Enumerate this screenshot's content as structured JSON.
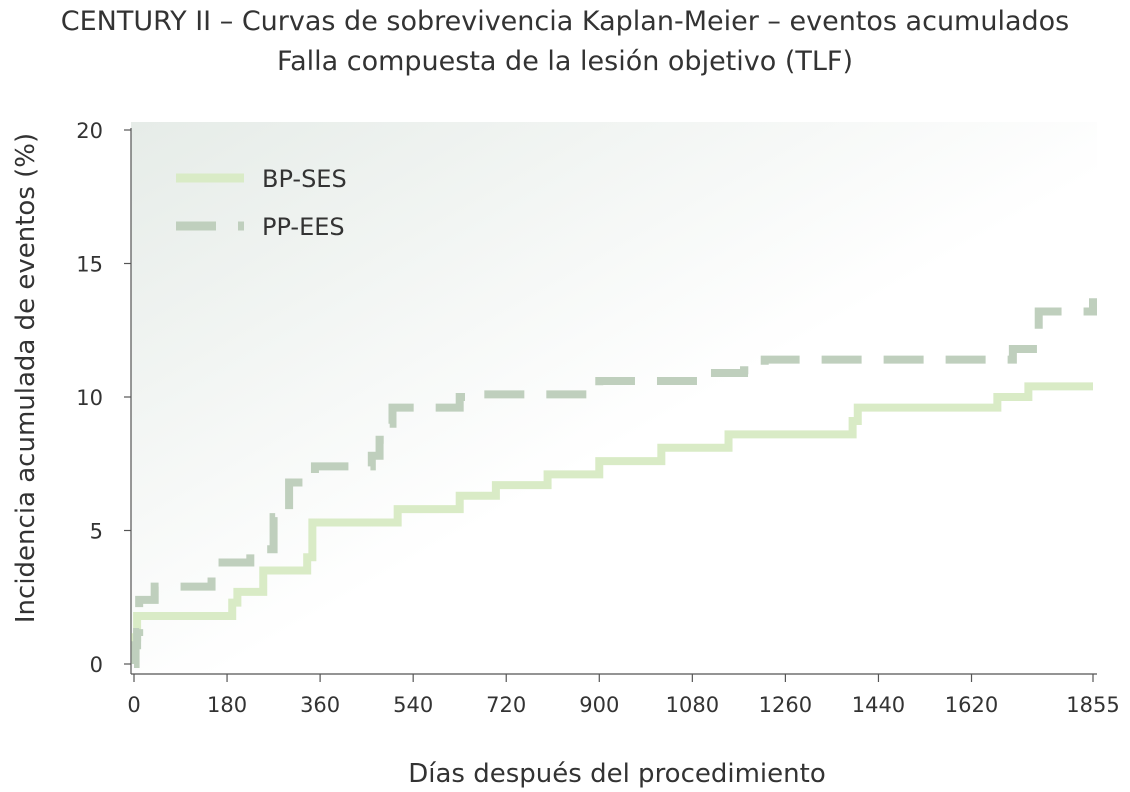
{
  "chart_data": {
    "type": "line",
    "title": "CENTURY II – Curvas de sobrevivencia Kaplan-Meier – eventos acumulados",
    "subtitle": "Falla compuesta de la lesión objetivo (TLF)",
    "xlabel": "Días después del procedimiento",
    "ylabel": "Incidencia acumulada de eventos (%)",
    "xlim": [
      0,
      1855
    ],
    "ylim": [
      0,
      20
    ],
    "xticks": [
      "0",
      "180",
      "360",
      "540",
      "720",
      "900",
      "1080",
      "1260",
      "1440",
      "1620",
      "1855"
    ],
    "yticks": [
      "0",
      "5",
      "10",
      "15",
      "20"
    ],
    "legend_position": "top-left",
    "grid": false,
    "series": [
      {
        "name": "BP-SES",
        "color": "#d9ebc6",
        "style": "solid",
        "x": [
          0,
          3,
          6,
          185,
          190,
          200,
          240,
          250,
          320,
          335,
          345,
          500,
          510,
          620,
          630,
          700,
          780,
          800,
          880,
          900,
          1010,
          1020,
          1130,
          1150,
          1380,
          1390,
          1400,
          1660,
          1670,
          1720,
          1730,
          1855
        ],
        "y": [
          0,
          1.0,
          1.8,
          1.8,
          2.3,
          2.7,
          2.7,
          3.5,
          3.5,
          4.0,
          5.3,
          5.3,
          5.8,
          5.8,
          6.3,
          6.7,
          6.7,
          7.1,
          7.1,
          7.6,
          7.6,
          8.1,
          8.1,
          8.6,
          8.6,
          9.1,
          9.6,
          9.6,
          10.0,
          10.0,
          10.4,
          10.4
        ]
      },
      {
        "name": "PP-EES",
        "color": "#bfcfbd",
        "style": "dashed",
        "x": [
          0,
          3,
          6,
          10,
          40,
          120,
          150,
          215,
          225,
          270,
          290,
          300,
          350,
          400,
          460,
          475,
          490,
          500,
          540,
          620,
          630,
          650,
          700,
          900,
          1000,
          1100,
          1180,
          1220,
          1580,
          1700,
          1730,
          1750,
          1855
        ],
        "y": [
          0,
          0.7,
          1.2,
          2.4,
          2.9,
          2.9,
          3.8,
          3.8,
          4.3,
          5.5,
          5.5,
          6.8,
          7.4,
          7.4,
          7.8,
          8.4,
          9.0,
          9.6,
          9.6,
          9.6,
          10.0,
          10.1,
          10.1,
          10.6,
          10.6,
          10.9,
          11.0,
          11.4,
          11.4,
          11.8,
          11.8,
          13.2,
          13.7
        ]
      }
    ]
  }
}
